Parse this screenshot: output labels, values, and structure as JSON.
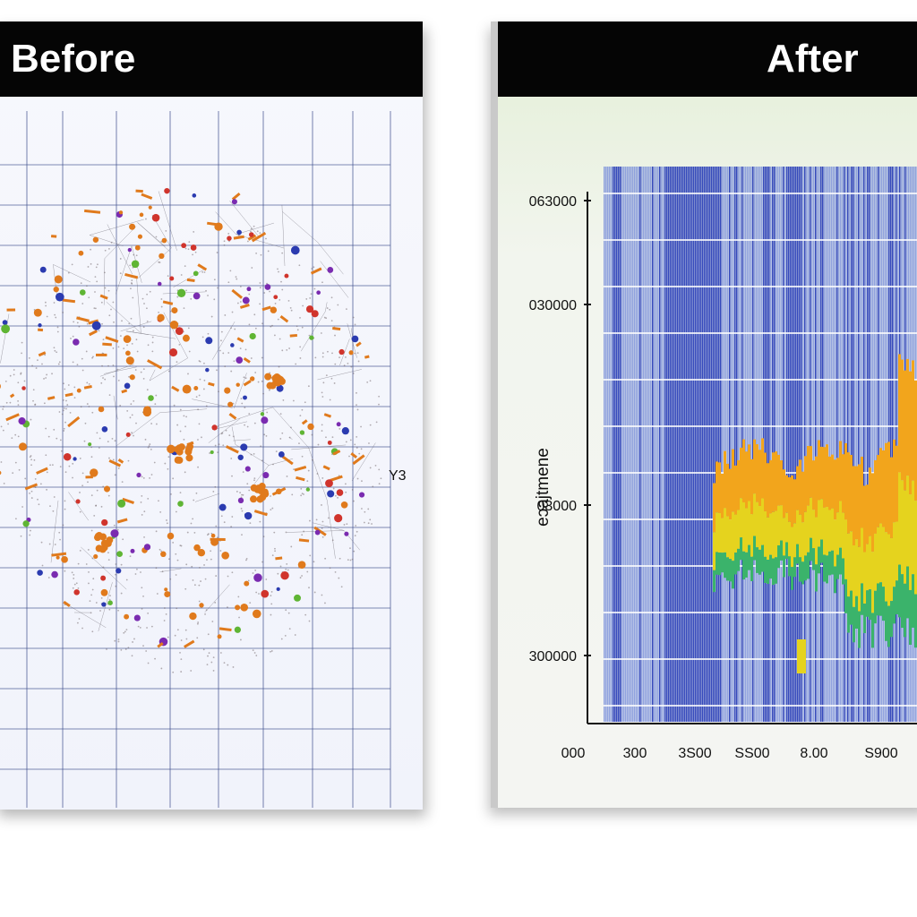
{
  "before": {
    "title": "Before",
    "side_label": "Y3",
    "chart_data": {
      "type": "scatter",
      "title": "Before",
      "description_series": [
        {
          "name": "orange",
          "color": "#e07a1c"
        },
        {
          "name": "purple",
          "color": "#7a2bb0"
        },
        {
          "name": "green",
          "color": "#5fb534"
        },
        {
          "name": "blue",
          "color": "#2b3bb0"
        },
        {
          "name": "red",
          "color": "#d0342c"
        }
      ],
      "grid": true
    }
  },
  "after": {
    "title": "After",
    "chart_data": {
      "type": "heatmap",
      "title": "After",
      "ylabel": "eɔajtmene",
      "yticks": [
        "063000",
        "030000",
        "03000",
        "300000"
      ],
      "xticks": [
        "000",
        "300",
        "3S00",
        "SS00",
        "8.00",
        "S900"
      ],
      "colors": {
        "bars": "#2a3fb8",
        "hot": "#f2a51c",
        "warm": "#e5d31e",
        "cool": "#3bb36b"
      }
    }
  }
}
